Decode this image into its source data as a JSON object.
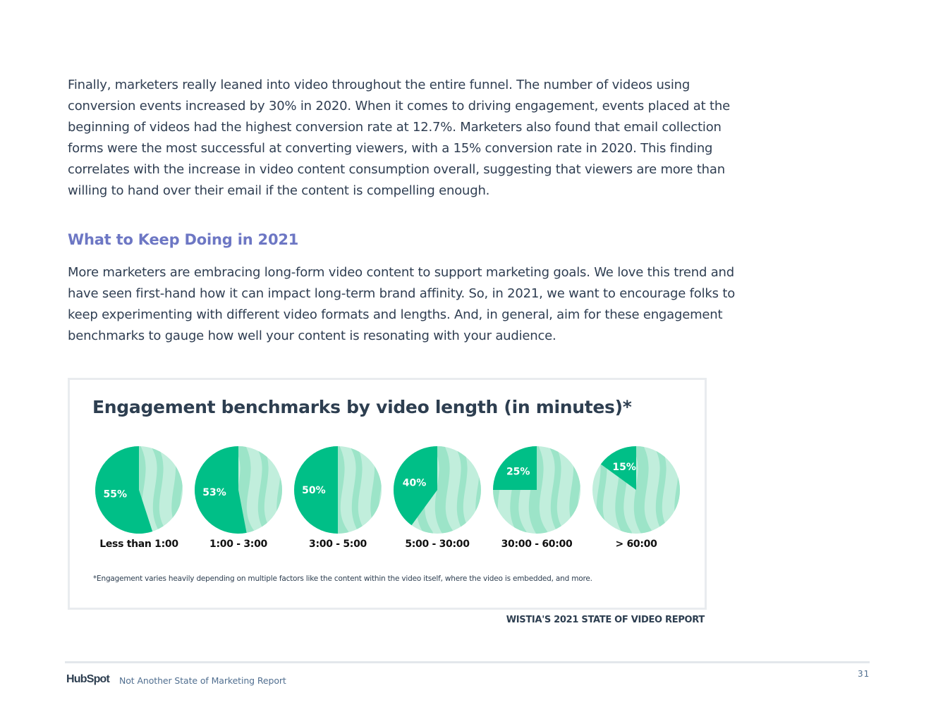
{
  "body": {
    "paragraph_1": "Finally, marketers really leaned into video throughout the entire funnel. The number of videos using conversion events increased by 30% in 2020. When it comes to driving engagement, events placed at the beginning of videos had the highest conversion rate at 12.7%. Marketers also found that email collection forms were the most successful at converting viewers, with a 15% conversion rate in 2020. This finding correlates with the increase in video content consumption overall, suggesting that viewers are more than willing to hand over their email if the content is compelling enough.",
    "heading": "What to Keep Doing in 2021",
    "paragraph_2": "More marketers are embracing long-form video content to support marketing goals. We love this trend and have seen first-hand how it can impact long-term brand affinity. So, in 2021, we want to encourage folks to keep experimenting with different video formats and lengths. And, in general, aim for these engagement benchmarks to gauge how well your content is resonating with your audience."
  },
  "figure": {
    "title": "Engagement benchmarks by video length (in minutes)*",
    "footnote": "*Engagement varies heavily depending on multiple factors like the content within the video itself, where the video is embedded, and more.",
    "source": "WISTIA'S 2021 STATE OF VIDEO REPORT"
  },
  "colors": {
    "primary_green": "#00bf87",
    "light_green": "#c1eedc",
    "brush_green": "#8fe0c2",
    "heading_purple": "#6d77c4",
    "text": "#2f3e52"
  },
  "chart_data": {
    "type": "pie",
    "title": "Engagement benchmarks by video length (in minutes)*",
    "categories": [
      "Less than 1:00",
      "1:00 - 3:00",
      "3:00 - 5:00",
      "5:00 - 30:00",
      "30:00 - 60:00",
      "> 60:00"
    ],
    "values": [
      55,
      53,
      50,
      40,
      25,
      15
    ],
    "value_labels": [
      "55%",
      "53%",
      "50%",
      "40%",
      "25%",
      "15%"
    ],
    "unit": "%"
  },
  "footer": {
    "logo": "HubSpot",
    "report_name": "Not Another State of Marketing Report",
    "page_number": "31"
  }
}
